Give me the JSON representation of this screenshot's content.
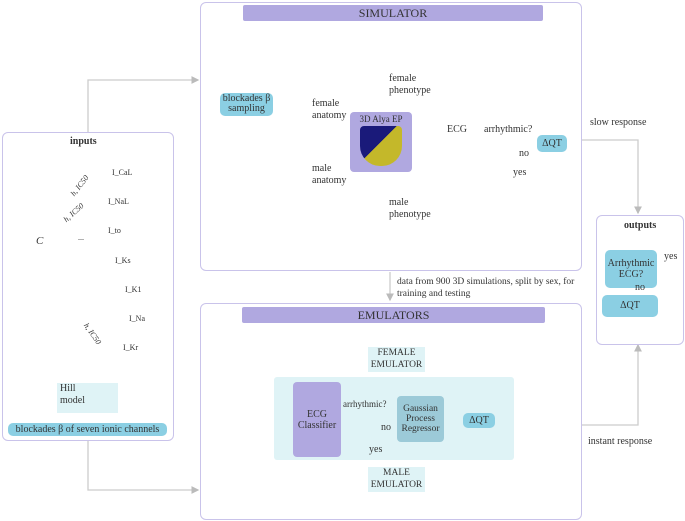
{
  "inputs": {
    "title": "inputs",
    "drug": "C",
    "hill_labels": [
      "h, IC50",
      "h, IC50",
      "...",
      "h, IC50"
    ],
    "channels": [
      "I_CaL",
      "I_NaL",
      "I_to",
      "I_Ks",
      "I_K1",
      "I_Na",
      "I_Kr"
    ],
    "hill_model": "Hill\nmodel",
    "blockades": "blockades β of seven ionic channels"
  },
  "simulator": {
    "title": "SIMULATOR",
    "sampling": "blockades β sampling",
    "female_anatomy": "female anatomy",
    "male_anatomy": "male anatomy",
    "female_phenotype": "female phenotype",
    "male_phenotype": "male phenotype",
    "alya": "3D Alya EP",
    "ecg": "ECG",
    "arrhythmic": "arrhythmic?",
    "no": "no",
    "yes": "yes",
    "dqt": "ΔQT"
  },
  "data_note": "data from 900 3D simulations, split by sex, for training and testing",
  "emulators": {
    "title": "EMULATORS",
    "female": "FEMALE EMULATOR",
    "male": "MALE EMULATOR",
    "classifier": "ECG Classifier",
    "arrhythmic": "arrhythmic?",
    "no": "no",
    "yes": "yes",
    "gpr": "Gaussian Process Regressor",
    "dqt": "ΔQT"
  },
  "outputs": {
    "title": "outputs",
    "arrhythmic_ecg": "Arrhythmic ECG?",
    "yes": "yes",
    "no": "no",
    "dqt": "ΔQT"
  },
  "slow_response": "slow response",
  "instant_response": "instant response",
  "colors": {
    "purple": "#b0a8e0",
    "blue": "#8bcfe3",
    "teal_bg": "#dff3f6",
    "border": "#c9c3ea"
  }
}
